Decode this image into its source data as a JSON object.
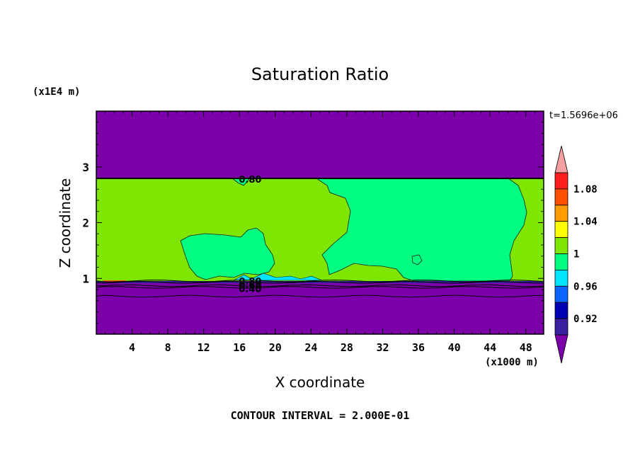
{
  "chart_data": {
    "type": "heatmap",
    "title": "Saturation Ratio",
    "xlabel": "X coordinate",
    "ylabel": "Z coordinate",
    "x_unit": "(x1000 m)",
    "y_unit": "(x1E4 m)",
    "time_label": "t=1.5696e+06",
    "contour_interval_label": "CONTOUR INTERVAL = 2.000E-01",
    "xlim": [
      0,
      50
    ],
    "ylim": [
      0,
      4
    ],
    "x_ticks": [
      4,
      8,
      12,
      16,
      20,
      24,
      28,
      32,
      36,
      40,
      44,
      48
    ],
    "y_ticks": [
      1,
      2,
      3
    ],
    "colorbar": {
      "levels": [
        0.92,
        0.96,
        1,
        1.04,
        1.08
      ],
      "tick_labels": [
        "0.92",
        "0.96",
        "1",
        "1.04",
        "1.08"
      ],
      "colors": [
        "#7b00aa",
        "#3a1fa0",
        "#0000b4",
        "#0a64ff",
        "#00e4ff",
        "#00ff80",
        "#7ee600",
        "#ffff00",
        "#ff9c00",
        "#ff5000",
        "#ff1e1e",
        "#f5a0a0"
      ],
      "extend": "both"
    },
    "regions": [
      {
        "name": "upper-layer",
        "value_class": "< 0.92",
        "color": "#7b00aa",
        "z_range": [
          2.8,
          4
        ]
      },
      {
        "name": "cloud-layer-background",
        "value_class": "1 - 1.02",
        "color": "#7ee600",
        "z_range": [
          0.98,
          2.8
        ]
      },
      {
        "name": "near-saturation-patches",
        "value_class": "0.98 - 1",
        "color": "#00ff80"
      },
      {
        "name": "lower-layer",
        "value_class": "< 0.92",
        "color": "#7b00aa",
        "z_range": [
          0,
          0.95
        ]
      }
    ],
    "contour_labels": [
      {
        "text": "0.80",
        "x": 17.2,
        "y": 2.78
      },
      {
        "text": "0.80",
        "x": 17.2,
        "y": 0.95
      },
      {
        "text": "0.60",
        "x": 17.2,
        "y": 0.88
      },
      {
        "text": "0.40",
        "x": 17.2,
        "y": 0.82
      }
    ],
    "contour_lines": [
      {
        "level": 0.8,
        "z": 0.955
      },
      {
        "level": 0.6,
        "z": 0.93
      },
      {
        "level": 0.4,
        "z": 0.87
      },
      {
        "level": 0.2,
        "z": 0.84
      },
      {
        "level": 0.2,
        "z": 0.68
      }
    ]
  }
}
